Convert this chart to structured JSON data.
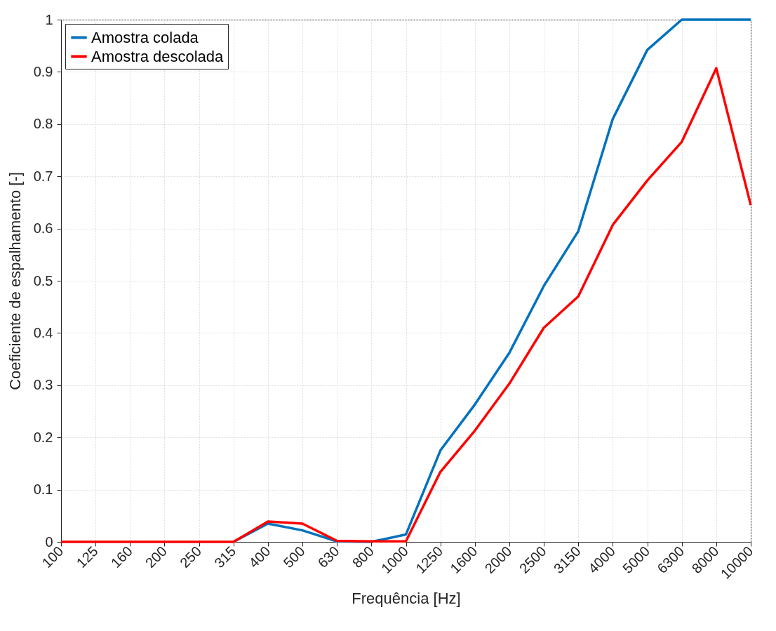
{
  "chart_data": {
    "type": "line",
    "xlabel": "Frequência [Hz]",
    "ylabel": "Coeficiente de espalhamento [-]",
    "categories": [
      "100",
      "125",
      "160",
      "200",
      "250",
      "315",
      "400",
      "500",
      "630",
      "800",
      "1000",
      "1250",
      "1600",
      "2000",
      "2500",
      "3150",
      "4000",
      "5000",
      "6300",
      "8000",
      "10000"
    ],
    "series": [
      {
        "name": "Amostra colada",
        "color": "#0072bd",
        "values": [
          null,
          null,
          null,
          null,
          null,
          0,
          0.035,
          0.022,
          0.001,
          0,
          0.014,
          0.175,
          0.263,
          0.362,
          0.49,
          0.595,
          0.81,
          0.942,
          1,
          1,
          1
        ]
      },
      {
        "name": "Amostra descolada",
        "color": "#ff0000",
        "values": [
          0,
          0,
          0,
          0,
          0,
          0,
          0.039,
          0.035,
          0.002,
          0.001,
          0.001,
          0.134,
          0.213,
          0.303,
          0.41,
          0.47,
          0.607,
          0.692,
          0.766,
          0.907,
          0.645
        ]
      }
    ],
    "ylim": [
      0,
      1
    ],
    "yticks": [
      0,
      0.1,
      0.2,
      0.3,
      0.4,
      0.5,
      0.6,
      0.7,
      0.8,
      0.9,
      1
    ],
    "grid": true,
    "legend": "top left",
    "marker": "none",
    "line_style": "solid"
  }
}
